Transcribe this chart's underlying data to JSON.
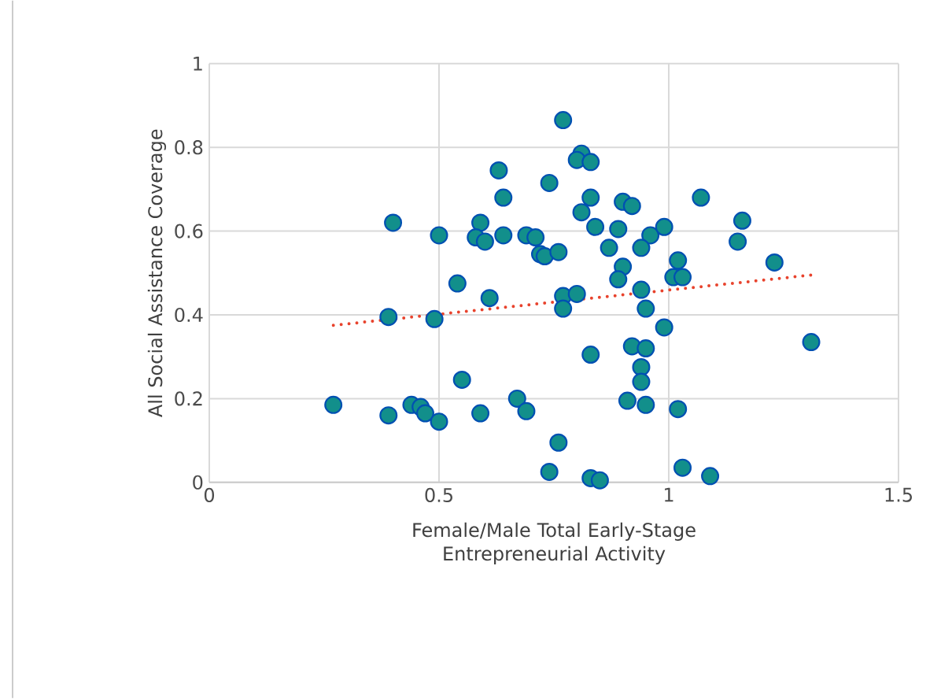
{
  "chart_data": {
    "type": "scatter",
    "xlabel": "Female/Male Total Early-Stage Entrepreneurial Activity",
    "ylabel": "All Social Assistance Coverage",
    "xlim": [
      0,
      1.5
    ],
    "xticks": [
      0,
      0.5,
      1,
      1.5
    ],
    "ylim": [
      0,
      1
    ],
    "yticks": [
      0,
      0.2,
      0.4,
      0.6,
      0.8,
      1
    ],
    "grid": true,
    "series": [
      {
        "color": "#128f8b",
        "marker": "circle",
        "x": [
          0.4,
          0.5,
          0.59,
          0.58,
          0.6,
          0.64,
          0.63,
          0.64,
          0.74,
          0.77,
          0.81,
          0.8,
          0.83,
          0.83,
          0.81,
          0.69,
          0.71,
          0.72,
          0.73,
          0.76,
          0.84,
          0.54,
          0.61,
          0.39,
          0.49,
          0.77,
          0.77,
          0.8,
          0.83,
          0.55,
          0.27,
          0.39,
          0.44,
          0.46,
          0.47,
          0.5,
          0.59,
          0.67,
          0.69,
          0.76,
          0.74,
          0.83,
          0.85,
          0.9,
          0.92,
          1.07,
          0.89,
          0.87,
          0.96,
          0.99,
          0.94,
          1.16,
          1.15,
          0.9,
          0.89,
          1.02,
          1.01,
          1.03,
          1.23,
          0.94,
          0.95,
          0.99,
          1.31,
          0.92,
          0.95,
          0.94,
          0.94,
          0.91,
          0.95,
          1.02,
          1.03,
          1.09
        ],
        "values": [
          0.62,
          0.59,
          0.62,
          0.585,
          0.575,
          0.59,
          0.745,
          0.68,
          0.715,
          0.865,
          0.785,
          0.77,
          0.765,
          0.68,
          0.645,
          0.59,
          0.585,
          0.545,
          0.54,
          0.55,
          0.61,
          0.475,
          0.44,
          0.395,
          0.39,
          0.445,
          0.415,
          0.45,
          0.305,
          0.245,
          0.185,
          0.16,
          0.185,
          0.18,
          0.165,
          0.145,
          0.165,
          0.2,
          0.17,
          0.095,
          0.025,
          0.01,
          0.005,
          0.67,
          0.66,
          0.68,
          0.605,
          0.56,
          0.59,
          0.61,
          0.56,
          0.625,
          0.575,
          0.515,
          0.485,
          0.53,
          0.49,
          0.49,
          0.525,
          0.46,
          0.415,
          0.37,
          0.335,
          0.325,
          0.32,
          0.275,
          0.24,
          0.195,
          0.185,
          0.175,
          0.035,
          0.015
        ]
      },
      {
        "type": "line",
        "color": "#e8432d",
        "line_style": "dotted",
        "marker": "none",
        "x": [
          0.27,
          1.31
        ],
        "values": [
          0.375,
          0.495
        ]
      }
    ]
  }
}
